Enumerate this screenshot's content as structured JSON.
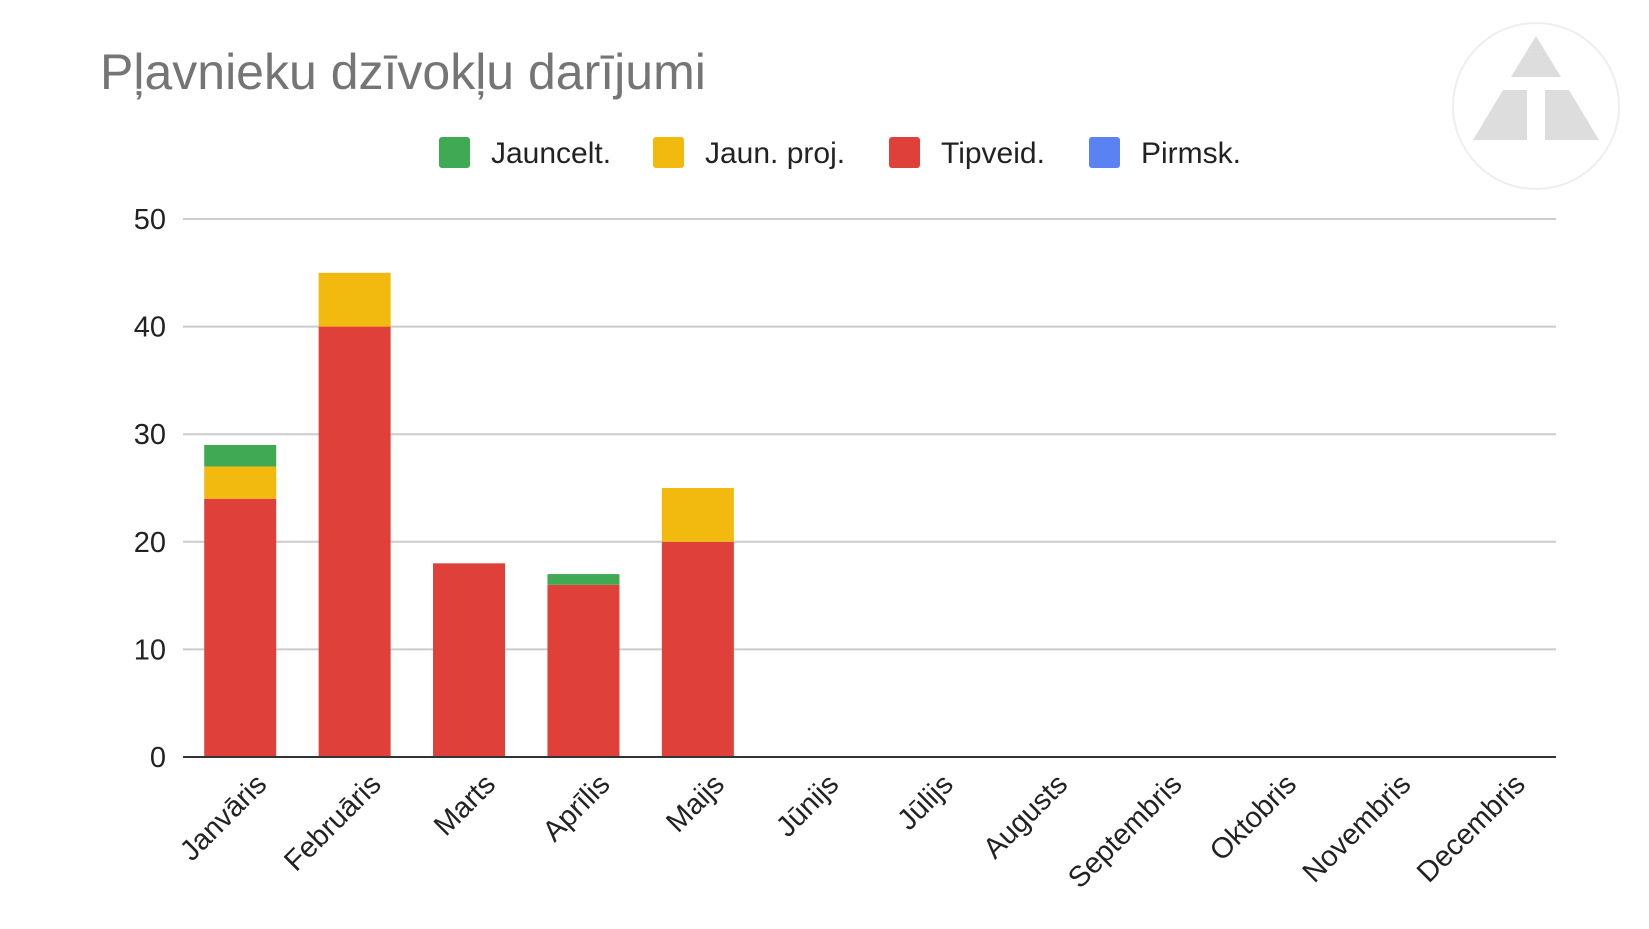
{
  "chart_data": {
    "type": "bar",
    "stacked": true,
    "title": "Pļavnieku dzīvokļu darījumi",
    "xlabel": "",
    "ylabel": "",
    "ylim": [
      0,
      50
    ],
    "yticks": [
      0,
      10,
      20,
      30,
      40,
      50
    ],
    "grid": true,
    "legend_position": "top",
    "categories": [
      "Janvāris",
      "Februāris",
      "Marts",
      "Aprīlis",
      "Maijs",
      "Jūnijs",
      "Jūlijs",
      "Augusts",
      "Septembris",
      "Oktobris",
      "Novembris",
      "Decembris"
    ],
    "series": [
      {
        "name": "Tipveid.",
        "color": "#e0403a",
        "values": [
          24,
          40,
          18,
          16,
          20,
          0,
          0,
          0,
          0,
          0,
          0,
          0
        ]
      },
      {
        "name": "Jaun. proj.",
        "color": "#f2b90f",
        "values": [
          3,
          5,
          0,
          0,
          5,
          0,
          0,
          0,
          0,
          0,
          0,
          0
        ]
      },
      {
        "name": "Jauncelt.",
        "color": "#3faa53",
        "values": [
          2,
          0,
          0,
          1,
          0,
          0,
          0,
          0,
          0,
          0,
          0,
          0
        ]
      },
      {
        "name": "Pirmsk.",
        "color": "#5b82f2",
        "values": [
          0,
          0,
          0,
          0,
          0,
          0,
          0,
          0,
          0,
          0,
          0,
          0
        ]
      }
    ],
    "legend_order": [
      "Jauncelt.",
      "Jaun. proj.",
      "Tipveid.",
      "Pirmsk."
    ]
  },
  "logo": {
    "icon": "triangle-logo-icon",
    "color": "#dddddd"
  }
}
